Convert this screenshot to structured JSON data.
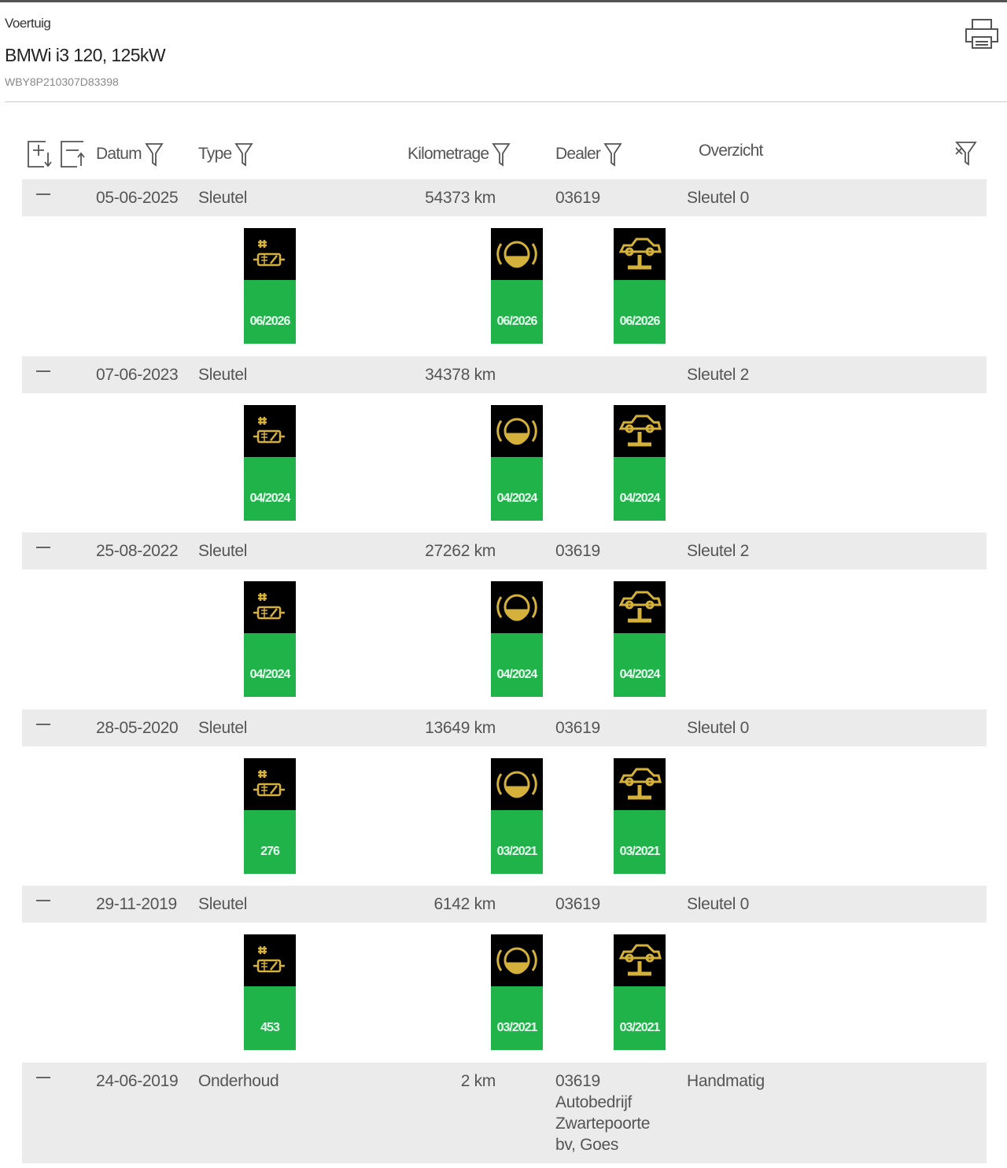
{
  "header": {
    "label": "Voertuig",
    "title": "BMWi i3 120, 125kW",
    "vin": "WBY8P210307D83398"
  },
  "columns": {
    "datum": "Datum",
    "type": "Type",
    "km": "Kilometrage",
    "dealer": "Dealer",
    "overzicht": "Overzicht"
  },
  "colors": {
    "band": "#ebebeb",
    "tile_green": "#1fb34a",
    "icon_yellow": "#d4b13a"
  },
  "tile_icons": [
    "battery-service-icon",
    "brake-fluid-icon",
    "vehicle-check-icon"
  ],
  "rows": [
    {
      "date": "05-06-2025",
      "type": "Sleutel",
      "km": "54373 km",
      "dealer": "03619",
      "overview": "Sleutel 0",
      "tiles": [
        "06/2026",
        "06/2026",
        "06/2026"
      ]
    },
    {
      "date": "07-06-2023",
      "type": "Sleutel",
      "km": "34378 km",
      "dealer": "",
      "overview": "Sleutel 2",
      "tiles": [
        "04/2024",
        "04/2024",
        "04/2024"
      ]
    },
    {
      "date": "25-08-2022",
      "type": "Sleutel",
      "km": "27262 km",
      "dealer": "03619",
      "overview": "Sleutel 2",
      "tiles": [
        "04/2024",
        "04/2024",
        "04/2024"
      ]
    },
    {
      "date": "28-05-2020",
      "type": "Sleutel",
      "km": "13649 km",
      "dealer": "03619",
      "overview": "Sleutel 0",
      "tiles": [
        "276",
        "03/2021",
        "03/2021"
      ]
    },
    {
      "date": "29-11-2019",
      "type": "Sleutel",
      "km": "6142 km",
      "dealer": "03619",
      "overview": "Sleutel 0",
      "tiles": [
        "453",
        "03/2021",
        "03/2021"
      ]
    },
    {
      "date": "24-06-2019",
      "type": "Onderhoud",
      "km": "2 km",
      "dealer": "03619\nAutobedrijf\nZwartepoorte\nbv, Goes",
      "overview": "Handmatig",
      "tiles": []
    }
  ]
}
